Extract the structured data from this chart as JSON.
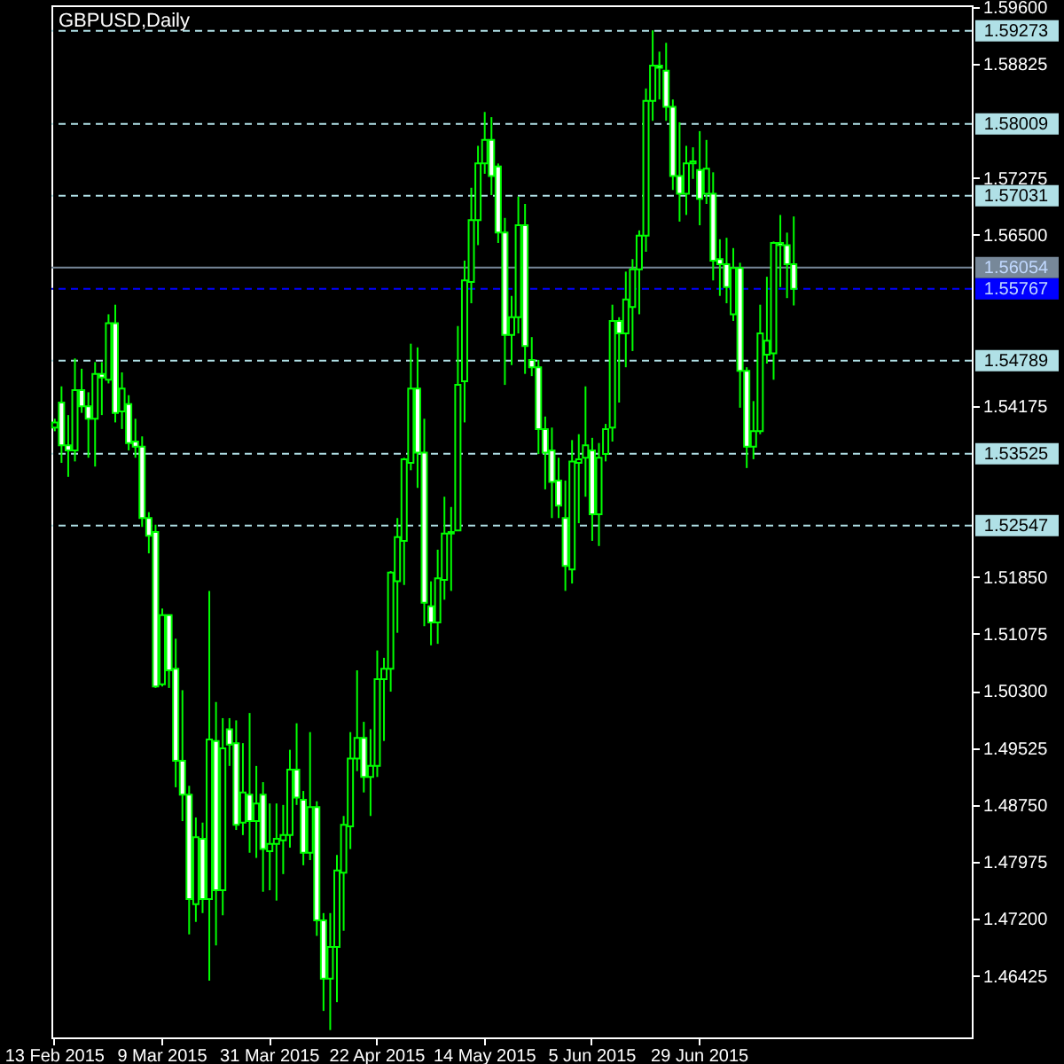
{
  "chart_data": {
    "type": "candlestick",
    "title": "GBPUSD,Daily",
    "color": "#00ff00",
    "categories": [
      "13 Feb 2015",
      null,
      null,
      null,
      null,
      null,
      null,
      null,
      null,
      null,
      null,
      null,
      null,
      null,
      null,
      null,
      "9 Mar 2015",
      null,
      null,
      null,
      null,
      null,
      null,
      null,
      null,
      null,
      null,
      null,
      null,
      null,
      null,
      null,
      "31 Mar 2015",
      null,
      null,
      null,
      null,
      null,
      null,
      null,
      null,
      null,
      null,
      null,
      null,
      null,
      null,
      null,
      "22 Apr 2015",
      null,
      null,
      null,
      null,
      null,
      null,
      null,
      null,
      null,
      null,
      null,
      null,
      null,
      null,
      null,
      "14 May 2015",
      null,
      null,
      null,
      null,
      null,
      null,
      null,
      null,
      null,
      null,
      null,
      null,
      null,
      null,
      null,
      "5 Jun 2015",
      null,
      null,
      null,
      null,
      null,
      null,
      null,
      null,
      null,
      null,
      null,
      null,
      null,
      null,
      null,
      "29 Jun 2015",
      null,
      null,
      null,
      null,
      null,
      null,
      null,
      null,
      null,
      null,
      null,
      null,
      null,
      null,
      null,
      null,
      null,
      null,
      null,
      null,
      null,
      null,
      null,
      null,
      null,
      null,
      null,
      null,
      null,
      null,
      null,
      null,
      null,
      null,
      null,
      null,
      null,
      null,
      null,
      null
    ],
    "ohlc": [
      [
        1.5388,
        1.54,
        1.5383,
        1.5395
      ],
      [
        1.5422,
        1.5444,
        1.534,
        1.5364
      ],
      [
        1.5364,
        1.5405,
        1.5321,
        1.5357
      ],
      [
        1.5357,
        1.5482,
        1.5342,
        1.5439
      ],
      [
        1.5439,
        1.5468,
        1.5408,
        1.5417
      ],
      [
        1.5417,
        1.5436,
        1.5347,
        1.54
      ],
      [
        1.54,
        1.5477,
        1.5335,
        1.5461
      ],
      [
        1.5461,
        1.5477,
        1.5405,
        1.5456
      ],
      [
        1.5453,
        1.5542,
        1.5448,
        1.553
      ],
      [
        1.553,
        1.5555,
        1.5395,
        1.5408
      ],
      [
        1.541,
        1.5463,
        1.5386,
        1.5441
      ],
      [
        1.542,
        1.5432,
        1.5357,
        1.5367
      ],
      [
        1.5369,
        1.54,
        1.5347,
        1.5362
      ],
      [
        1.5362,
        1.5376,
        1.5253,
        1.5265
      ],
      [
        1.5265,
        1.5273,
        1.5217,
        1.5241
      ],
      [
        1.5246,
        1.5256,
        1.5034,
        1.5036
      ],
      [
        1.5039,
        1.5142,
        1.5036,
        1.5133
      ],
      [
        1.5133,
        1.5133,
        1.5034,
        1.5058
      ],
      [
        1.506,
        1.5101,
        1.4899,
        1.4935
      ],
      [
        1.4935,
        1.5031,
        1.4853,
        1.4889
      ],
      [
        1.4889,
        1.4901,
        1.4699,
        1.4747
      ],
      [
        1.474,
        1.4858,
        1.4716,
        1.4831
      ],
      [
        1.4829,
        1.4851,
        1.4728,
        1.4747
      ],
      [
        1.4747,
        1.5166,
        1.4636,
        1.4964
      ],
      [
        1.4962,
        1.5015,
        1.4684,
        1.4759
      ],
      [
        1.4759,
        1.4993,
        1.4725,
        1.4952
      ],
      [
        1.4978,
        1.4993,
        1.4928,
        1.4957
      ],
      [
        1.4959,
        1.499,
        1.4841,
        1.4848
      ],
      [
        1.4851,
        1.4959,
        1.4834,
        1.4892
      ],
      [
        1.4889,
        1.5,
        1.481,
        1.4853
      ],
      [
        1.4853,
        1.4928,
        1.4803,
        1.4877
      ],
      [
        1.4889,
        1.4906,
        1.4757,
        1.4815
      ],
      [
        1.4812,
        1.4877,
        1.4759,
        1.4822
      ],
      [
        1.4822,
        1.4877,
        1.4745,
        1.4829
      ],
      [
        1.4827,
        1.4875,
        1.4781,
        1.4834
      ],
      [
        1.4834,
        1.495,
        1.4817,
        1.4923
      ],
      [
        1.4923,
        1.4986,
        1.4875,
        1.4885
      ],
      [
        1.4882,
        1.4894,
        1.4793,
        1.481
      ],
      [
        1.481,
        1.4974,
        1.48,
        1.4872
      ],
      [
        1.4872,
        1.488,
        1.4697,
        1.4718
      ],
      [
        1.4718,
        1.4728,
        1.4595,
        1.4639
      ],
      [
        1.4639,
        1.4728,
        1.4569,
        1.4682
      ],
      [
        1.4682,
        1.4807,
        1.4607,
        1.4786
      ],
      [
        1.4783,
        1.486,
        1.4704,
        1.4848
      ],
      [
        1.4846,
        1.4974,
        1.4815,
        1.4938
      ],
      [
        1.4938,
        1.5058,
        1.4921,
        1.4966
      ],
      [
        1.4966,
        1.4988,
        1.4892,
        1.4913
      ],
      [
        1.4913,
        1.4978,
        1.486,
        1.4928
      ],
      [
        1.4928,
        1.5085,
        1.4913,
        1.5046
      ],
      [
        1.5046,
        1.5075,
        1.4962,
        1.506
      ],
      [
        1.506,
        1.5193,
        1.5029,
        1.5191
      ],
      [
        1.5179,
        1.5265,
        1.5109,
        1.5239
      ],
      [
        1.5234,
        1.5347,
        1.5174,
        1.5345
      ],
      [
        1.534,
        1.5502,
        1.533,
        1.5441
      ],
      [
        1.5441,
        1.5497,
        1.5306,
        1.5354
      ],
      [
        1.5354,
        1.54,
        1.5118,
        1.515
      ],
      [
        1.5145,
        1.5179,
        1.5092,
        1.5123
      ],
      [
        1.5123,
        1.5222,
        1.5094,
        1.5183
      ],
      [
        1.5181,
        1.5294,
        1.5154,
        1.5244
      ],
      [
        1.5244,
        1.528,
        1.5166,
        1.5246
      ],
      [
        1.5248,
        1.5526,
        1.5248,
        1.5446
      ],
      [
        1.5451,
        1.5615,
        1.5395,
        1.5588
      ],
      [
        1.5586,
        1.5714,
        1.5557,
        1.567
      ],
      [
        1.567,
        1.5771,
        1.5636,
        1.5747
      ],
      [
        1.5747,
        1.5817,
        1.5733,
        1.5779
      ],
      [
        1.5779,
        1.581,
        1.5704,
        1.573
      ],
      [
        1.5743,
        1.5747,
        1.5639,
        1.5653
      ],
      [
        1.5653,
        1.5673,
        1.5446,
        1.5514
      ],
      [
        1.5514,
        1.5567,
        1.5473,
        1.5538
      ],
      [
        1.5538,
        1.5702,
        1.5516,
        1.5663
      ],
      [
        1.5663,
        1.5692,
        1.5461,
        1.5499
      ],
      [
        1.548,
        1.5511,
        1.5458,
        1.547
      ],
      [
        1.547,
        1.548,
        1.5352,
        1.5386
      ],
      [
        1.5386,
        1.5403,
        1.5304,
        1.5354
      ],
      [
        1.5357,
        1.5388,
        1.5265,
        1.5314
      ],
      [
        1.5316,
        1.5347,
        1.5265,
        1.5282
      ],
      [
        1.5265,
        1.5316,
        1.5166,
        1.52
      ],
      [
        1.5195,
        1.5371,
        1.5176,
        1.5342
      ],
      [
        1.534,
        1.5379,
        1.5258,
        1.5345
      ],
      [
        1.5347,
        1.5444,
        1.5294,
        1.5364
      ],
      [
        1.5357,
        1.5374,
        1.5234,
        1.527
      ],
      [
        1.527,
        1.5367,
        1.5227,
        1.5347
      ],
      [
        1.5352,
        1.5393,
        1.5342,
        1.5386
      ],
      [
        1.5388,
        1.5555,
        1.5369,
        1.5533
      ],
      [
        1.5533,
        1.5538,
        1.5422,
        1.5516
      ],
      [
        1.5516,
        1.56,
        1.547,
        1.5562
      ],
      [
        1.5552,
        1.5617,
        1.5492,
        1.5603
      ],
      [
        1.5603,
        1.5656,
        1.5542,
        1.5649
      ],
      [
        1.5649,
        1.5849,
        1.5627,
        1.5832
      ],
      [
        1.5832,
        1.5928,
        1.5805,
        1.588
      ],
      [
        1.588,
        1.5899,
        1.5834,
        1.5877
      ],
      [
        1.5873,
        1.5911,
        1.5805,
        1.5824
      ],
      [
        1.5824,
        1.5834,
        1.5711,
        1.573
      ],
      [
        1.573,
        1.5803,
        1.5668,
        1.5706
      ],
      [
        1.5706,
        1.5771,
        1.5677,
        1.5747
      ],
      [
        1.5747,
        1.5769,
        1.5726,
        1.575
      ],
      [
        1.5738,
        1.5791,
        1.5663,
        1.5699
      ],
      [
        1.5706,
        1.5779,
        1.5692,
        1.574
      ],
      [
        1.5706,
        1.5735,
        1.5588,
        1.5615
      ],
      [
        1.5617,
        1.5644,
        1.5567,
        1.561
      ],
      [
        1.561,
        1.5646,
        1.5557,
        1.5579
      ],
      [
        1.5542,
        1.5632,
        1.5533,
        1.5605
      ],
      [
        1.5605,
        1.5612,
        1.5415,
        1.5465
      ],
      [
        1.5465,
        1.547,
        1.5333,
        1.5362
      ],
      [
        1.5362,
        1.5424,
        1.5345,
        1.5383
      ],
      [
        1.5383,
        1.5555,
        1.5379,
        1.5516
      ],
      [
        1.5487,
        1.5593,
        1.5475,
        1.5506
      ],
      [
        1.5489,
        1.5641,
        1.5453,
        1.5639
      ],
      [
        1.5639,
        1.5677,
        1.5579,
        1.5636
      ],
      [
        1.5636,
        1.5653,
        1.5564,
        1.561
      ],
      [
        1.561,
        1.5675,
        1.5554,
        1.55767
      ],
      null,
      null,
      null,
      null,
      null,
      null,
      null,
      null,
      null,
      null,
      null,
      null,
      null,
      null,
      null,
      null,
      null,
      null,
      null,
      null,
      null,
      null,
      null,
      null,
      null,
      null
    ],
    "ylim": [
      1.4559,
      1.5962
    ],
    "yticks": [
      {
        "value": 1.596,
        "label": "1.59600"
      },
      {
        "value": 1.58825,
        "label": "1.58825"
      },
      {
        "value": 1.57275,
        "label": "1.57275"
      },
      {
        "value": 1.565,
        "label": "1.56500"
      },
      {
        "value": 1.54175,
        "label": "1.54175"
      },
      {
        "value": 1.5185,
        "label": "1.51850"
      },
      {
        "value": 1.51075,
        "label": "1.51075"
      },
      {
        "value": 1.503,
        "label": "1.50300"
      },
      {
        "value": 1.49525,
        "label": "1.49525"
      },
      {
        "value": 1.4875,
        "label": "1.48750"
      },
      {
        "value": 1.47975,
        "label": "1.47975"
      },
      {
        "value": 1.472,
        "label": "1.47200"
      },
      {
        "value": 1.46425,
        "label": "1.46425"
      }
    ],
    "ref_lines": [
      {
        "axis": "y",
        "value": 1.59273,
        "label": "1.59273",
        "color": "#b0e0e6",
        "line_style": "dashed"
      },
      {
        "axis": "y",
        "value": 1.58009,
        "label": "1.58009",
        "color": "#b0e0e6",
        "line_style": "dashed"
      },
      {
        "axis": "y",
        "value": 1.57031,
        "label": "1.57031",
        "color": "#b0e0e6",
        "line_style": "dashed"
      },
      {
        "axis": "y",
        "value": 1.56054,
        "label": "1.56054",
        "color": "#778899",
        "line_style": "solid"
      },
      {
        "axis": "y",
        "value": 1.55767,
        "label": "1.55767",
        "color": "#0000ff",
        "line_style": "dashed"
      },
      {
        "axis": "y",
        "value": 1.54789,
        "label": "1.54789",
        "color": "#b0e0e6",
        "line_style": "dashed"
      },
      {
        "axis": "y",
        "value": 1.53525,
        "label": "1.53525",
        "color": "#b0e0e6",
        "line_style": "dashed"
      },
      {
        "axis": "y",
        "value": 1.52547,
        "label": "1.52547",
        "color": "#b0e0e6",
        "line_style": "dashed"
      }
    ],
    "grid": false
  }
}
